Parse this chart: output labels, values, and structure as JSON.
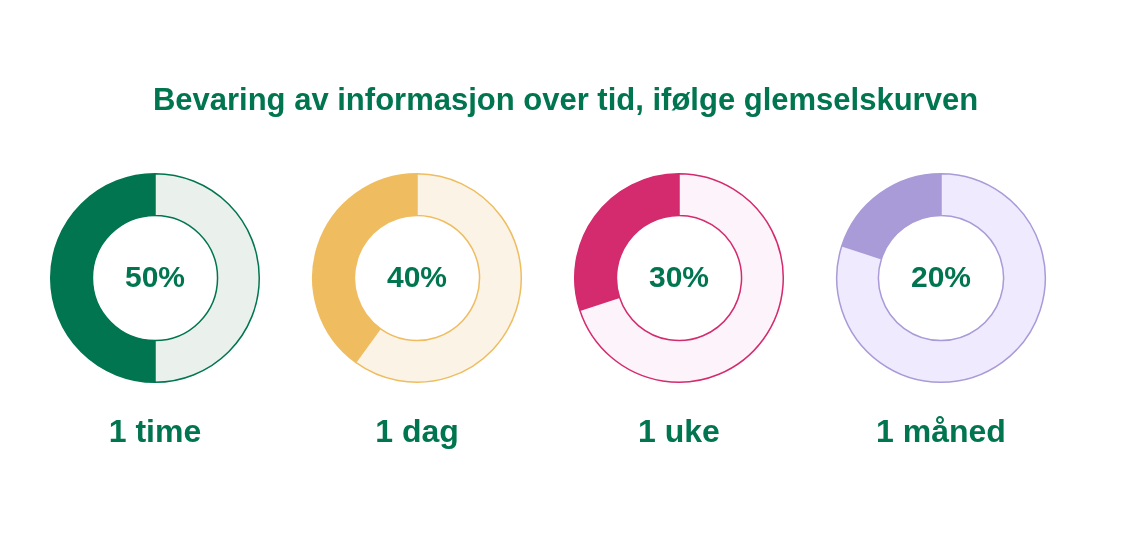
{
  "chart_data": [
    {
      "type": "other",
      "title": "Bevaring av informasjon over tid, ifølge glemselskurven"
    },
    {
      "type": "donut",
      "title": "1 time",
      "categories": [
        null,
        null
      ],
      "values": [
        50,
        50
      ],
      "colors": [
        "#00754f",
        "#eaf1ec"
      ],
      "value_labels": [
        "50%",
        null
      ]
    },
    {
      "type": "donut",
      "title": "1 dag",
      "categories": [
        null,
        null
      ],
      "values": [
        40,
        60
      ],
      "colors": [
        "#efbd60",
        "#fbf3e6"
      ],
      "value_labels": [
        "40%",
        null
      ]
    },
    {
      "type": "donut",
      "title": "1 uke",
      "categories": [
        null,
        null
      ],
      "values": [
        30,
        70
      ],
      "colors": [
        "#d42a6e",
        "#fdf3fa"
      ],
      "value_labels": [
        "30%",
        null
      ]
    },
    {
      "type": "donut",
      "title": "1 måned",
      "categories": [
        null,
        null
      ],
      "values": [
        20,
        80
      ],
      "colors": [
        "#a99ad8",
        "#efeafd"
      ],
      "value_labels": [
        "20%",
        null
      ]
    }
  ]
}
